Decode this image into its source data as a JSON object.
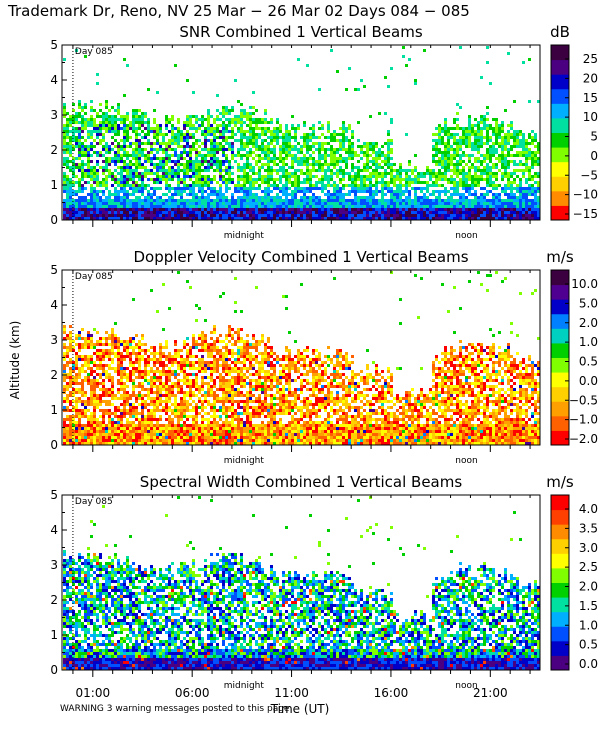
{
  "header": {
    "title": "Trademark Dr, Reno, NV  25 Mar − 26 Mar 02 Days 084 − 085"
  },
  "axes": {
    "ylabel": "Altitude (km)",
    "xlabel": "Time (UT)",
    "midnight_label": "midnight",
    "noon_label": "noon",
    "day_marker": "Day 085",
    "y_ticks": [
      "0",
      "1",
      "2",
      "3",
      "4",
      "5"
    ],
    "x_ticks": [
      "01:00",
      "06:00",
      "11:00",
      "16:00",
      "21:00"
    ]
  },
  "footer": {
    "warning": "WARNING  3 warning messages posted to this page"
  },
  "chart_data": [
    {
      "type": "heatmap",
      "title": "SNR Combined 1 Vertical Beams",
      "unit": "dB",
      "ylim": [
        0,
        5
      ],
      "colorbar": {
        "ticks": [
          "25",
          "20",
          "15",
          "10",
          "5",
          "0",
          "−5",
          "−10",
          "−15"
        ],
        "colors": [
          "#ff0000",
          "#ff8c00",
          "#ffd000",
          "#ffff00",
          "#7fff00",
          "#00d000",
          "#00e0a0",
          "#00b0ff",
          "#0050ff",
          "#0000c8",
          "#4b0082",
          "#3a0040"
        ]
      }
    },
    {
      "type": "heatmap",
      "title": "Doppler Velocity Combined 1 Vertical Beams",
      "unit": "m/s",
      "ylim": [
        0,
        5
      ],
      "colorbar": {
        "ticks": [
          "10.0",
          "5.0",
          "2.0",
          "1.0",
          "0.5",
          "0.0",
          "−0.5",
          "−1.0",
          "−2.0"
        ],
        "colors": [
          "#ff0000",
          "#ff6000",
          "#ffa000",
          "#ffd000",
          "#ffff00",
          "#7fff00",
          "#00d000",
          "#00d0c0",
          "#0080ff",
          "#0000c8",
          "#500090",
          "#3a0040"
        ]
      }
    },
    {
      "type": "heatmap",
      "title": "Spectral Width Combined 1 Vertical Beams",
      "unit": "m/s",
      "ylim": [
        0,
        5
      ],
      "colorbar": {
        "ticks": [
          "4.0",
          "3.5",
          "3.0",
          "2.5",
          "2.0",
          "1.5",
          "1.0",
          "0.5",
          "0.0"
        ],
        "colors": [
          "#4b0082",
          "#0000c8",
          "#0050ff",
          "#00b0ff",
          "#00e0a0",
          "#00d000",
          "#7fff00",
          "#ffff00",
          "#ffd000",
          "#ff8c00",
          "#ff4000",
          "#ff0000"
        ]
      }
    }
  ]
}
